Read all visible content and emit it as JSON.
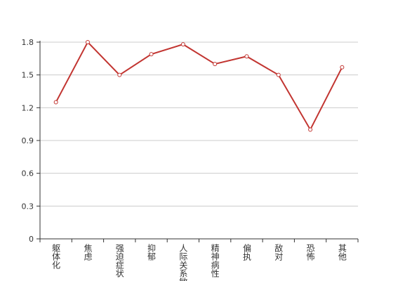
{
  "chart_data": {
    "type": "line",
    "categories": [
      "躯体化",
      "焦虑",
      "强迫症状",
      "抑郁",
      "人际关系敏感",
      "精神病性",
      "偏执",
      "敌对",
      "恐怖",
      "其他"
    ],
    "series": [
      {
        "color": "#c23531",
        "values": [
          1.25,
          1.8,
          1.5,
          1.69,
          1.78,
          1.6,
          1.67,
          1.5,
          1.0,
          1.57
        ]
      }
    ],
    "ylim": [
      0,
      1.8
    ],
    "yticks": [
      0,
      0.3,
      0.6,
      0.9,
      1.2,
      1.5,
      1.8
    ],
    "grid": true
  }
}
